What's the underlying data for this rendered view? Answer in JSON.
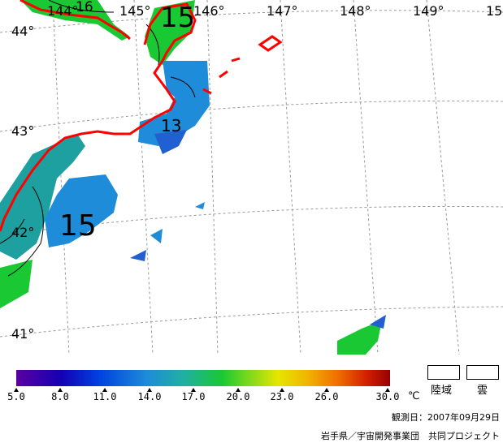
{
  "map": {
    "lon_labels": [
      "144°",
      "145°",
      "146°",
      "147°",
      "148°",
      "149°",
      "15"
    ],
    "lat_labels": [
      "44°",
      "43°",
      "42°",
      "41°"
    ],
    "contour_labels": [
      "16",
      "15",
      "13",
      "15"
    ]
  },
  "legend": {
    "scale_min": "5.0",
    "scale_labels": [
      "8.0",
      "11.0",
      "14.0",
      "17.0",
      "20.0",
      "23.0",
      "26.0",
      "30.0"
    ],
    "unit": "℃",
    "land_label": "陸域",
    "cloud_label": "雲"
  },
  "footer": {
    "observation_date": "観測日：2007年09月29日",
    "credit": "岩手県／宇宙開発事業団　共同プロジェクト"
  },
  "colors": {
    "coastline": "#ff0000",
    "warm": "#19c832",
    "mid": "#1e8cd8",
    "cool": "#2060d0"
  }
}
